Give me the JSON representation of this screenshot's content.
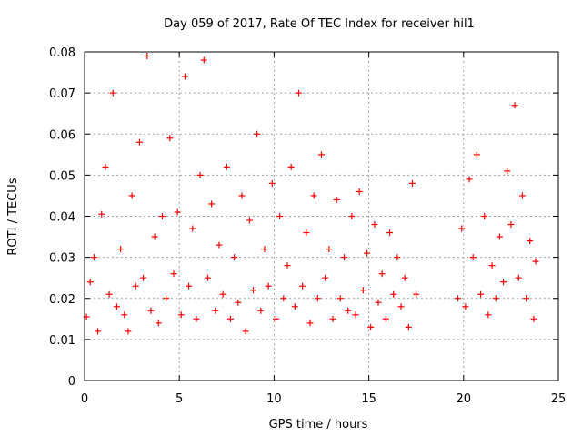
{
  "chart_data": {
    "type": "scatter",
    "title": "Day 059 of 2017, Rate Of TEC Index for receiver hil1",
    "xlabel": "GPS time / hours",
    "ylabel": "ROTI / TECUs",
    "xlim": [
      0,
      25
    ],
    "ylim": [
      0,
      0.08
    ],
    "xticks": [
      0,
      5,
      10,
      15,
      20,
      25
    ],
    "xtick_labels": [
      "0",
      "5",
      "10",
      "15",
      "20",
      "25"
    ],
    "yticks": [
      0,
      0.01,
      0.02,
      0.03,
      0.04,
      0.05,
      0.06,
      0.07,
      0.08
    ],
    "ytick_labels": [
      "0",
      "0.01",
      "0.02",
      "0.03",
      "0.04",
      "0.05",
      "0.06",
      "0.07",
      "0.08"
    ],
    "grid": true,
    "marker": "+",
    "color": "#ff0000",
    "series": [
      {
        "values": [
          [
            0.1,
            0.0155
          ],
          [
            0.3,
            0.024
          ],
          [
            0.5,
            0.03
          ],
          [
            0.7,
            0.012
          ],
          [
            0.9,
            0.0405
          ],
          [
            1.1,
            0.052
          ],
          [
            1.3,
            0.021
          ],
          [
            1.5,
            0.07
          ],
          [
            1.7,
            0.018
          ],
          [
            1.9,
            0.032
          ],
          [
            2.1,
            0.016
          ],
          [
            2.3,
            0.012
          ],
          [
            2.5,
            0.045
          ],
          [
            2.7,
            0.023
          ],
          [
            2.9,
            0.058
          ],
          [
            3.1,
            0.025
          ],
          [
            3.3,
            0.079
          ],
          [
            3.5,
            0.017
          ],
          [
            3.7,
            0.035
          ],
          [
            3.9,
            0.014
          ],
          [
            4.1,
            0.04
          ],
          [
            4.3,
            0.02
          ],
          [
            4.5,
            0.059
          ],
          [
            4.7,
            0.026
          ],
          [
            4.9,
            0.041
          ],
          [
            5.1,
            0.016
          ],
          [
            5.3,
            0.074
          ],
          [
            5.5,
            0.023
          ],
          [
            5.7,
            0.037
          ],
          [
            5.9,
            0.015
          ],
          [
            6.1,
            0.05
          ],
          [
            6.3,
            0.078
          ],
          [
            6.5,
            0.025
          ],
          [
            6.7,
            0.043
          ],
          [
            6.9,
            0.017
          ],
          [
            7.1,
            0.033
          ],
          [
            7.3,
            0.021
          ],
          [
            7.5,
            0.052
          ],
          [
            7.7,
            0.015
          ],
          [
            7.9,
            0.03
          ],
          [
            8.1,
            0.019
          ],
          [
            8.3,
            0.045
          ],
          [
            8.5,
            0.012
          ],
          [
            8.7,
            0.039
          ],
          [
            8.9,
            0.022
          ],
          [
            9.1,
            0.06
          ],
          [
            9.3,
            0.017
          ],
          [
            9.5,
            0.032
          ],
          [
            9.7,
            0.023
          ],
          [
            9.9,
            0.048
          ],
          [
            10.1,
            0.015
          ],
          [
            10.3,
            0.04
          ],
          [
            10.5,
            0.02
          ],
          [
            10.7,
            0.028
          ],
          [
            10.9,
            0.052
          ],
          [
            11.1,
            0.018
          ],
          [
            11.3,
            0.07
          ],
          [
            11.5,
            0.023
          ],
          [
            11.7,
            0.036
          ],
          [
            11.9,
            0.014
          ],
          [
            12.1,
            0.045
          ],
          [
            12.3,
            0.02
          ],
          [
            12.5,
            0.055
          ],
          [
            12.7,
            0.025
          ],
          [
            12.9,
            0.032
          ],
          [
            13.1,
            0.015
          ],
          [
            13.3,
            0.044
          ],
          [
            13.5,
            0.02
          ],
          [
            13.7,
            0.03
          ],
          [
            13.9,
            0.017
          ],
          [
            14.1,
            0.04
          ],
          [
            14.3,
            0.016
          ],
          [
            14.5,
            0.046
          ],
          [
            14.7,
            0.022
          ],
          [
            14.9,
            0.031
          ],
          [
            15.1,
            0.013
          ],
          [
            15.3,
            0.038
          ],
          [
            15.5,
            0.019
          ],
          [
            15.7,
            0.026
          ],
          [
            15.9,
            0.015
          ],
          [
            16.1,
            0.036
          ],
          [
            16.3,
            0.021
          ],
          [
            16.5,
            0.03
          ],
          [
            16.7,
            0.018
          ],
          [
            16.9,
            0.025
          ],
          [
            17.1,
            0.013
          ],
          [
            17.3,
            0.048
          ],
          [
            17.5,
            0.021
          ],
          [
            19.7,
            0.02
          ],
          [
            19.9,
            0.037
          ],
          [
            20.1,
            0.018
          ],
          [
            20.3,
            0.049
          ],
          [
            20.5,
            0.03
          ],
          [
            20.7,
            0.055
          ],
          [
            20.9,
            0.021
          ],
          [
            21.1,
            0.04
          ],
          [
            21.3,
            0.016
          ],
          [
            21.5,
            0.028
          ],
          [
            21.7,
            0.02
          ],
          [
            21.9,
            0.035
          ],
          [
            22.1,
            0.024
          ],
          [
            22.3,
            0.051
          ],
          [
            22.5,
            0.038
          ],
          [
            22.7,
            0.067
          ],
          [
            22.9,
            0.025
          ],
          [
            23.1,
            0.045
          ],
          [
            23.3,
            0.02
          ],
          [
            23.5,
            0.034
          ],
          [
            23.7,
            0.015
          ],
          [
            23.8,
            0.029
          ]
        ]
      }
    ]
  }
}
